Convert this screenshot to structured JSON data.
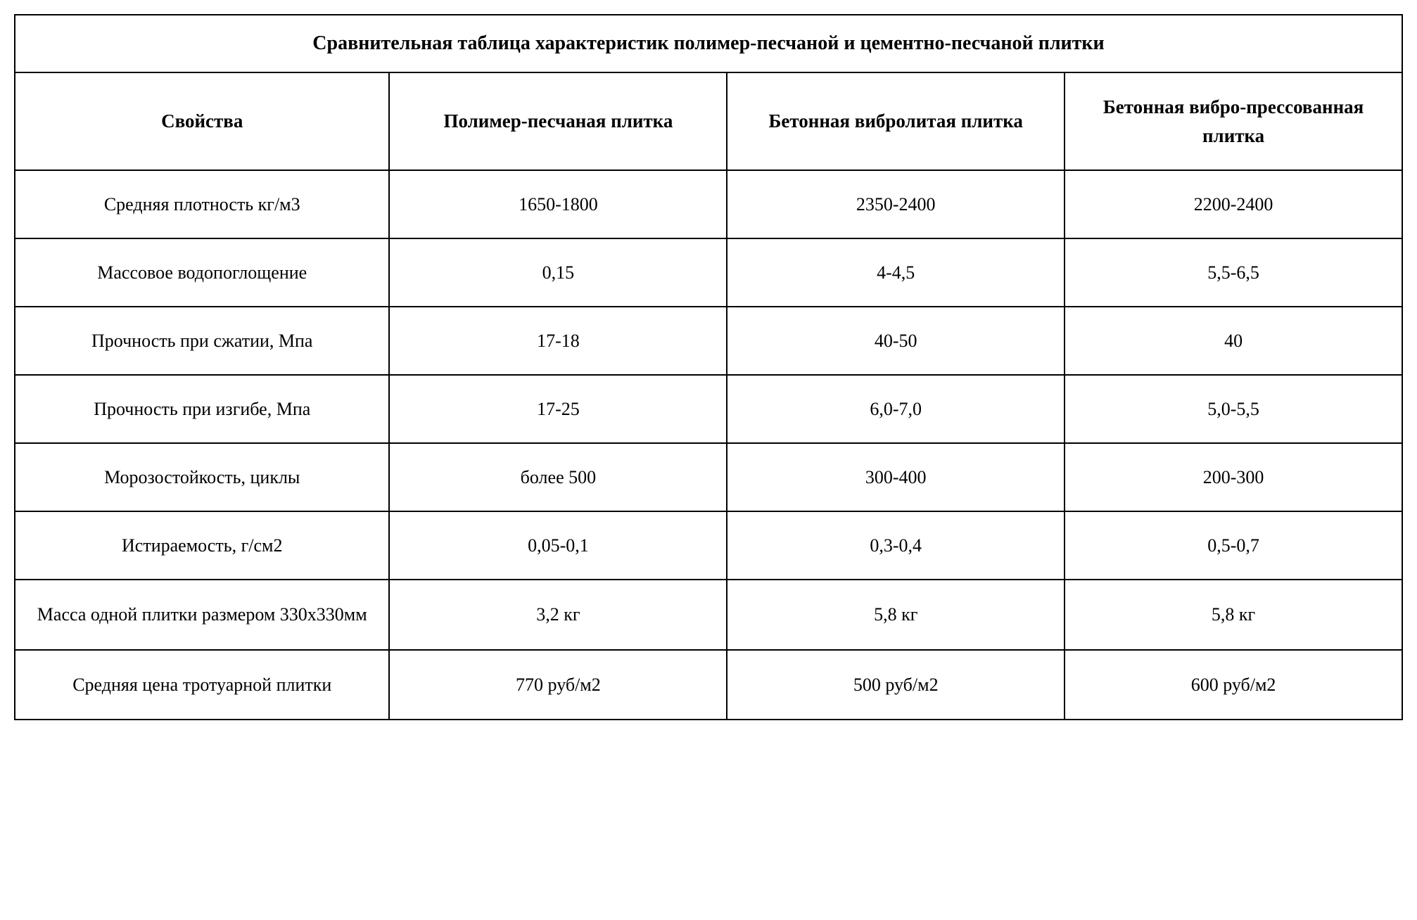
{
  "table": {
    "title": "Сравнительная таблица характеристик полимер-песчаной и цементно-песчаной плитки",
    "columns": [
      "Свойства",
      "Полимер-песчаная плитка",
      "Бетонная вибролитая плитка",
      "Бетонная вибро-прессованная плитка"
    ],
    "rows": [
      {
        "property": "Средняя плотность кг/м3",
        "col1": "1650-1800",
        "col2": "2350-2400",
        "col3": "2200-2400"
      },
      {
        "property": "Массовое водопоглощение",
        "col1": "0,15",
        "col2": "4-4,5",
        "col3": "5,5-6,5"
      },
      {
        "property": "Прочность при сжатии, Мпа",
        "col1": "17-18",
        "col2": "40-50",
        "col3": "40"
      },
      {
        "property": "Прочность при изгибе, Мпа",
        "col1": "17-25",
        "col2": "6,0-7,0",
        "col3": "5,0-5,5"
      },
      {
        "property": "Морозостойкость, циклы",
        "col1": "более 500",
        "col2": "300-400",
        "col3": "200-300"
      },
      {
        "property": "Истираемость, г/см2",
        "col1": "0,05-0,1",
        "col2": "0,3-0,4",
        "col3": "0,5-0,7"
      },
      {
        "property": "Масса одной плитки размером 330х330мм",
        "col1": "3,2 кг",
        "col2": "5,8 кг",
        "col3": "5,8 кг"
      },
      {
        "property": "Средняя цена тротуарной плитки",
        "col1": "770 руб/м2",
        "col2": "500 руб/м2",
        "col3": "600 руб/м2"
      }
    ],
    "styling": {
      "border_color": "#000000",
      "border_width": 2,
      "background_color": "#ffffff",
      "text_color": "#000000",
      "font_family": "Times New Roman",
      "title_fontsize": 28,
      "header_fontsize": 27,
      "cell_fontsize": 26,
      "column_widths_pct": [
        27,
        24.33,
        24.33,
        24.33
      ]
    }
  }
}
